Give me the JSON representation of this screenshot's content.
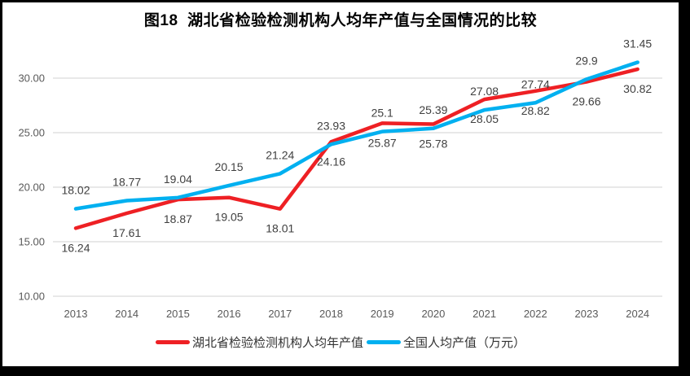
{
  "chart_data": {
    "type": "line",
    "title": "图18  湖北省检验检测机构人均年产值与全国情况的比较",
    "categories": [
      "2013",
      "2014",
      "2015",
      "2016",
      "2017",
      "2018",
      "2019",
      "2020",
      "2021",
      "2022",
      "2023",
      "2024"
    ],
    "series": [
      {
        "name": "湖北省检验检测机构人均年产值",
        "color": "#EE2024",
        "label_position": "below",
        "values": [
          16.24,
          17.61,
          18.87,
          19.05,
          18.01,
          24.16,
          25.87,
          25.78,
          28.05,
          28.82,
          29.66,
          30.82
        ],
        "labels": [
          "16.24",
          "17.61",
          "18.87",
          "19.05",
          "18.01",
          "24.16",
          "25.87",
          "25.78",
          "28.05",
          "28.82",
          "29.66",
          "30.82"
        ]
      },
      {
        "name": "全国人均产值（万元）",
        "color": "#00B0F0",
        "label_position": "above",
        "values": [
          18.02,
          18.77,
          19.04,
          20.15,
          21.24,
          23.93,
          25.1,
          25.39,
          27.08,
          27.74,
          29.9,
          31.45
        ],
        "labels": [
          "18.02",
          "18.77",
          "19.04",
          "20.15",
          "21.24",
          "23.93",
          "25.1",
          "25.39",
          "27.08",
          "27.74",
          "29.9",
          "31.45"
        ]
      }
    ],
    "yticks": [
      "10.00",
      "15.00",
      "20.00",
      "25.00",
      "30.00"
    ],
    "ylim": [
      10,
      32.5
    ],
    "grid": true,
    "legend_position": "bottom",
    "gridline_color": "#E0E0E0",
    "axis_text_color": "#595959",
    "data_label_color": "#404040",
    "frame_border_color": "#000000",
    "background_color": "#ffffff"
  }
}
